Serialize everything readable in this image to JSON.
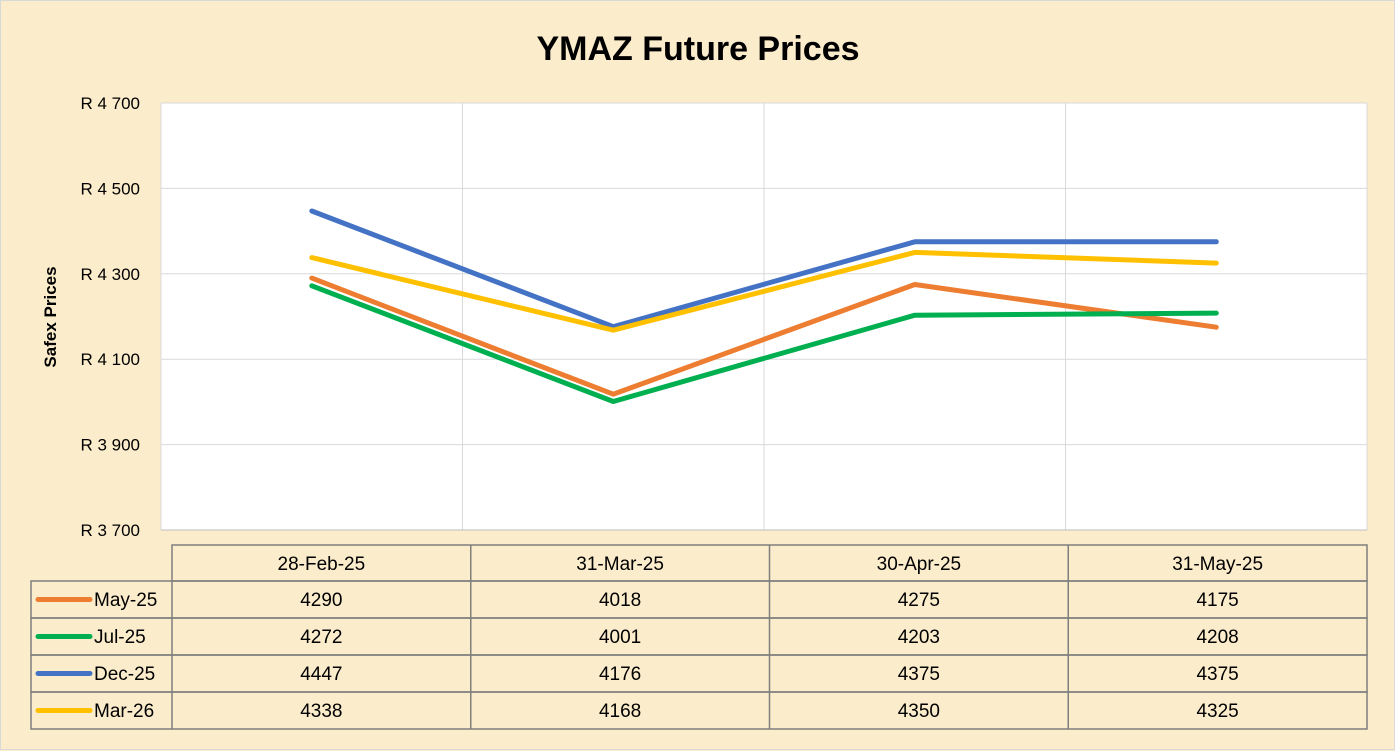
{
  "chart_data": {
    "type": "line",
    "title": "YMAZ Future Prices",
    "ylabel": "Safex Prices",
    "xlabel": "",
    "ylim": [
      3700,
      4700
    ],
    "yticks": [
      3700,
      3900,
      4100,
      4300,
      4500,
      4700
    ],
    "ytick_labels": [
      "R 3 700",
      "R 3 900",
      "R 4 100",
      "R 4 300",
      "R 4 500",
      "R 4 700"
    ],
    "categories": [
      "28-Feb-25",
      "31-Mar-25",
      "30-Apr-25",
      "31-May-25"
    ],
    "grid": true,
    "legend_placement": "data-table-below",
    "series": [
      {
        "name": "May-25",
        "color": "#ed7d31",
        "values": [
          4290,
          4018,
          4275,
          4175
        ]
      },
      {
        "name": "Jul-25",
        "color": "#00b050",
        "values": [
          4272,
          4001,
          4203,
          4208
        ]
      },
      {
        "name": "Dec-25",
        "color": "#4472c4",
        "values": [
          4447,
          4176,
          4375,
          4375
        ]
      },
      {
        "name": "Mar-26",
        "color": "#ffc000",
        "values": [
          4338,
          4168,
          4350,
          4325
        ]
      }
    ]
  }
}
